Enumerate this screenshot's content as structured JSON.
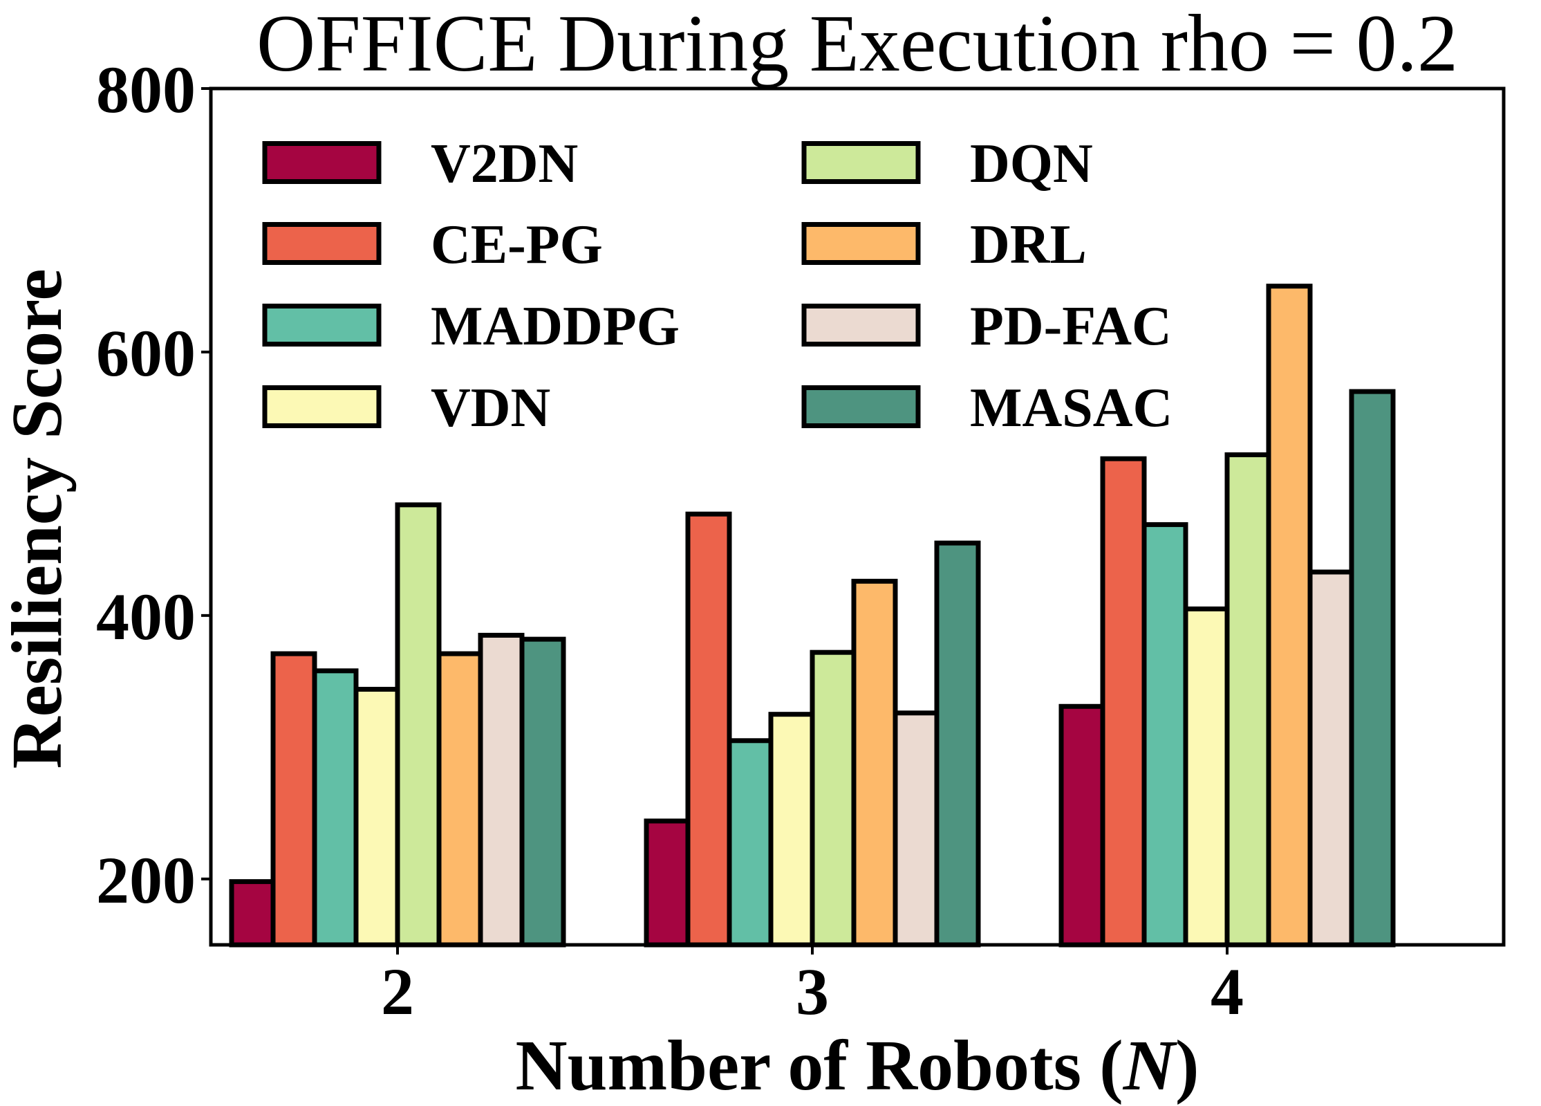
{
  "chart_data": {
    "type": "bar",
    "title": "OFFICE During Execution rho = 0.2",
    "xlabel_prefix": "Number of Robots (",
    "xlabel_var": "N",
    "xlabel_suffix": ")",
    "ylabel": "Resiliency Score",
    "categories": [
      "2",
      "3",
      "4"
    ],
    "ylim": [
      150,
      800
    ],
    "yticks": [
      200,
      400,
      600,
      800
    ],
    "grid": false,
    "legend": {
      "placement": "top-left",
      "columns": 2
    },
    "series": [
      {
        "name": "V2DN",
        "color": "#a50541",
        "values": [
          198,
          244,
          331
        ]
      },
      {
        "name": "CE-PG",
        "color": "#ec634b",
        "values": [
          371,
          477,
          519
        ]
      },
      {
        "name": "MADDPG",
        "color": "#62bfa6",
        "values": [
          358,
          305,
          469
        ]
      },
      {
        "name": "VDN",
        "color": "#fcf9b5",
        "values": [
          344,
          325,
          405
        ]
      },
      {
        "name": "DQN",
        "color": "#cde99a",
        "values": [
          484,
          372,
          522
        ]
      },
      {
        "name": "DRL",
        "color": "#fdb96a",
        "values": [
          371,
          426,
          650
        ]
      },
      {
        "name": "PD-FAC",
        "color": "#ebdad1",
        "values": [
          385,
          326,
          433
        ]
      },
      {
        "name": "MASAC",
        "color": "#4e9480",
        "values": [
          382,
          455,
          570
        ]
      }
    ]
  }
}
